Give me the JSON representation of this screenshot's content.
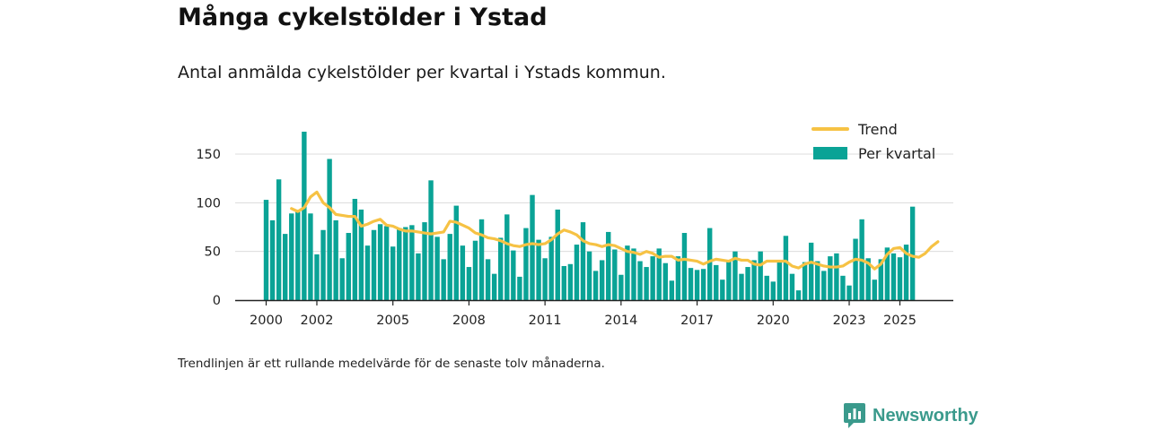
{
  "chart_data": {
    "type": "bar",
    "title": "Många cykelstölder i Ystad",
    "subtitle": "Antal anmälda cykelstölder per kvartal i Ystads kommun.",
    "note": "Trendlinjen är ett rullande medelvärde för de senaste tolv månaderna.",
    "xlabel": "",
    "ylabel": "",
    "ylim": [
      0,
      180
    ],
    "y_ticks": [
      0,
      50,
      100,
      150
    ],
    "x_ticks": [
      {
        "label": "2000",
        "year": 2000
      },
      {
        "label": "2002",
        "year": 2002
      },
      {
        "label": "2005",
        "year": 2005
      },
      {
        "label": "2008",
        "year": 2008
      },
      {
        "label": "2011",
        "year": 2011
      },
      {
        "label": "2014",
        "year": 2014
      },
      {
        "label": "2017",
        "year": 2017
      },
      {
        "label": "2020",
        "year": 2020
      },
      {
        "label": "2023",
        "year": 2023
      },
      {
        "label": "2025",
        "year": 2025
      }
    ],
    "start_year": 2000,
    "legend_position": "top-right",
    "series": [
      {
        "name": "Per kvartal",
        "type": "bar",
        "color": "#0aa396",
        "values": [
          103,
          82,
          124,
          68,
          89,
          92,
          173,
          89,
          47,
          72,
          145,
          82,
          43,
          69,
          104,
          93,
          56,
          72,
          78,
          76,
          55,
          74,
          75,
          77,
          48,
          80,
          123,
          65,
          42,
          68,
          97,
          56,
          34,
          61,
          83,
          42,
          27,
          64,
          88,
          51,
          24,
          74,
          108,
          62,
          43,
          65,
          93,
          35,
          37,
          57,
          80,
          50,
          30,
          41,
          70,
          52,
          26,
          56,
          53,
          40,
          34,
          45,
          53,
          38,
          20,
          45,
          69,
          33,
          31,
          32,
          74,
          36,
          21,
          41,
          50,
          27,
          34,
          41,
          50,
          25,
          19,
          41,
          66,
          27,
          10,
          39,
          59,
          40,
          30,
          45,
          48,
          25,
          15,
          63,
          83,
          43,
          21,
          42,
          54,
          48,
          44,
          57,
          96
        ]
      },
      {
        "name": "Trend",
        "type": "line",
        "color": "#f6c244",
        "start_index": 4,
        "values": [
          94,
          91,
          95,
          106,
          111,
          100,
          95,
          88,
          87,
          86,
          86,
          76,
          78,
          81,
          83,
          77,
          76,
          73,
          71,
          71,
          70,
          69,
          68,
          69,
          70,
          81,
          80,
          77,
          74,
          69,
          67,
          64,
          63,
          61,
          58,
          56,
          55,
          57,
          58,
          57,
          58,
          62,
          68,
          72,
          70,
          67,
          61,
          58,
          57,
          55,
          57,
          56,
          53,
          50,
          49,
          47,
          50,
          48,
          44,
          45,
          45,
          41,
          42,
          41,
          40,
          37,
          40,
          42,
          41,
          40,
          43,
          41,
          41,
          37,
          36,
          40,
          40,
          40,
          40,
          35,
          33,
          37,
          39,
          37,
          35,
          34,
          34,
          35,
          39,
          42,
          41,
          38,
          32,
          37,
          47,
          53,
          54,
          48,
          45,
          44,
          48,
          55,
          60
        ]
      }
    ]
  },
  "legend": {
    "trend_label": "Trend",
    "bars_label": "Per kvartal"
  },
  "brand": {
    "name": "Newsworthy",
    "color": "#3a9a8c"
  }
}
